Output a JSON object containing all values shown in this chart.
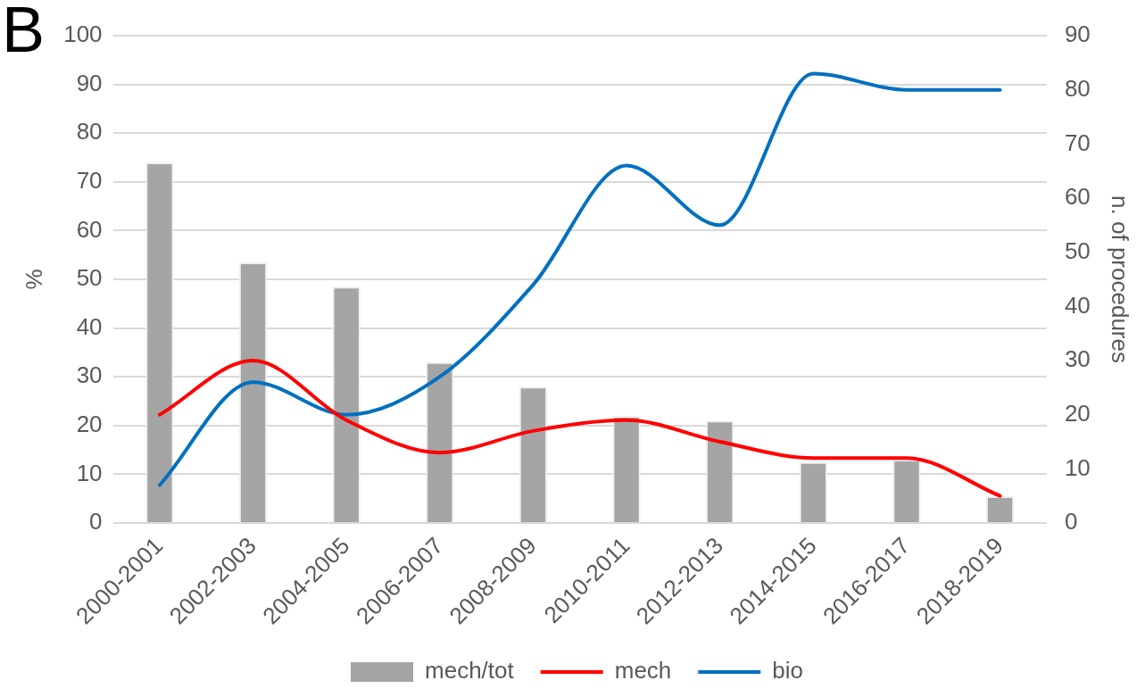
{
  "chart_data": {
    "type": "bar",
    "title": "B",
    "ylabel": "%",
    "y2label": "n. of procedures",
    "categories": [
      "2000-2001",
      "2002-2003",
      "2004-2005",
      "2006-2007",
      "2008-2009",
      "2010-2011",
      "2012-2013",
      "2014-2015",
      "2016-2017",
      "2018-2019"
    ],
    "series": [
      {
        "name": "mech/tot",
        "color": "#a5a5a5",
        "values": [
          74,
          53.5,
          48.5,
          33,
          28,
          22,
          21,
          12.5,
          13,
          5.5
        ]
      },
      {
        "name": "mech",
        "type": "line",
        "axis": "y2",
        "color": "#ff0000",
        "values": [
          20,
          30,
          19,
          13,
          17,
          19,
          15,
          12,
          12,
          5
        ]
      },
      {
        "name": "bio",
        "type": "line",
        "axis": "y2",
        "color": "#0070c0",
        "values": [
          7,
          26,
          20,
          27,
          44,
          66,
          55,
          83,
          80,
          80
        ]
      }
    ],
    "ylim": [
      0,
      100
    ],
    "yticks": [
      0,
      10,
      20,
      30,
      40,
      50,
      60,
      70,
      80,
      90,
      100
    ],
    "y2lim": [
      0,
      90
    ],
    "y2ticks": [
      0,
      10,
      20,
      30,
      40,
      50,
      60,
      70,
      80,
      90
    ],
    "grid": "y",
    "legend": "bottom",
    "marker": "none"
  }
}
